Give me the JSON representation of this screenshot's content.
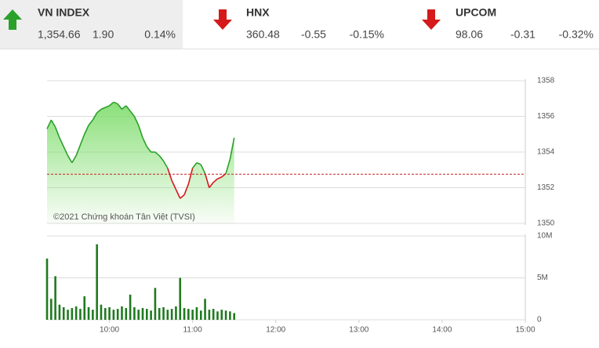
{
  "tickers": [
    {
      "name": "VN INDEX",
      "value": "1,354.66",
      "change": "1.90",
      "percent": "0.14%",
      "direction": "up"
    },
    {
      "name": "HNX",
      "value": "360.48",
      "change": "-0.55",
      "percent": "-0.15%",
      "direction": "down"
    },
    {
      "name": "UPCOM",
      "value": "98.06",
      "change": "-0.31",
      "percent": "-0.32%",
      "direction": "down"
    }
  ],
  "chart_data": [
    {
      "type": "line",
      "annotation": "©2021 Chứng khoán Tân Việt (TVSI)",
      "reference": 1352.76,
      "up_color": "#2aa12a",
      "down_color": "#d41a1a",
      "area_color": "#7ddc6a",
      "x": [
        555,
        558,
        561,
        564,
        567,
        570,
        573,
        576,
        579,
        582,
        585,
        588,
        591,
        594,
        597,
        600,
        603,
        606,
        609,
        612,
        615,
        618,
        621,
        624,
        627,
        630,
        633,
        636,
        639,
        642,
        645,
        648,
        651,
        654,
        657,
        660,
        663,
        666,
        669,
        672,
        675,
        678,
        681,
        684,
        687,
        690
      ],
      "values": [
        1355.3,
        1355.8,
        1355.4,
        1354.8,
        1354.3,
        1353.8,
        1353.4,
        1353.8,
        1354.4,
        1355.0,
        1355.5,
        1355.8,
        1356.2,
        1356.4,
        1356.5,
        1356.6,
        1356.8,
        1356.7,
        1356.4,
        1356.6,
        1356.3,
        1356.0,
        1355.5,
        1354.8,
        1354.3,
        1354.0,
        1354.0,
        1353.8,
        1353.5,
        1353.1,
        1352.4,
        1351.9,
        1351.4,
        1351.6,
        1352.2,
        1353.1,
        1353.4,
        1353.3,
        1352.8,
        1352.0,
        1352.3,
        1352.5,
        1352.6,
        1352.8,
        1353.6,
        1354.8
      ],
      "xlim": [
        555,
        900
      ],
      "ylim": [
        1350,
        1358
      ],
      "yticks": [
        1350,
        1352,
        1354,
        1356,
        1358
      ],
      "grid": true
    },
    {
      "type": "bar",
      "color": "#1f7a1f",
      "x": [
        555,
        558,
        561,
        564,
        567,
        570,
        573,
        576,
        579,
        582,
        585,
        588,
        591,
        594,
        597,
        600,
        603,
        606,
        609,
        612,
        615,
        618,
        621,
        624,
        627,
        630,
        633,
        636,
        639,
        642,
        645,
        648,
        651,
        654,
        657,
        660,
        663,
        666,
        669,
        672,
        675,
        678,
        681,
        684,
        687,
        690
      ],
      "values": [
        7300000,
        2500000,
        5200000,
        1800000,
        1500000,
        1200000,
        1400000,
        1600000,
        1300000,
        2800000,
        1500000,
        1200000,
        9000000,
        1800000,
        1400000,
        1500000,
        1200000,
        1300000,
        1600000,
        1400000,
        3000000,
        1500000,
        1200000,
        1400000,
        1300000,
        1100000,
        3800000,
        1400000,
        1500000,
        1200000,
        1300000,
        1600000,
        5000000,
        1400000,
        1300000,
        1200000,
        1500000,
        1100000,
        2500000,
        1200000,
        1300000,
        1000000,
        1200000,
        1100000,
        1000000,
        800000
      ],
      "xlim": [
        555,
        900
      ],
      "xticks": [
        {
          "value": 600,
          "label": "10:00"
        },
        {
          "value": 660,
          "label": "11:00"
        },
        {
          "value": 720,
          "label": "12:00"
        },
        {
          "value": 780,
          "label": "13:00"
        },
        {
          "value": 840,
          "label": "14:00"
        },
        {
          "value": 900,
          "label": "15:00"
        }
      ],
      "ylim": [
        0,
        10000000
      ],
      "yticks": [
        0,
        {
          "value": 5000000,
          "label": "5M"
        },
        {
          "value": 10000000,
          "label": "10M"
        }
      ],
      "grid": true
    }
  ]
}
